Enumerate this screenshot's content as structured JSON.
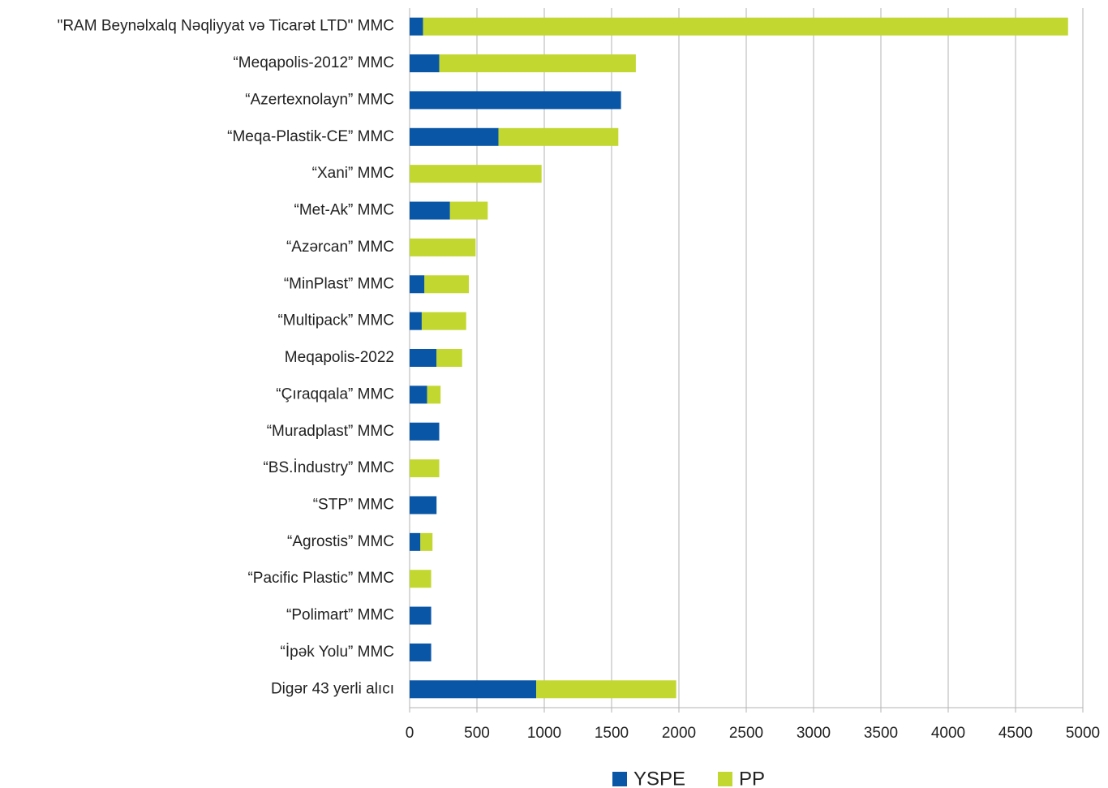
{
  "chart_data": {
    "type": "stacked_barh",
    "categories": [
      "\"RAM Beynəlxalq Nəqliyyat və Ticarət LTD\" MMC",
      "“Meqapolis-2012” MMC",
      "“Azertexnolayn” MMC",
      "“Meqa-Plastik-CE” MMC",
      "“Xani” MMC",
      "“Met-Ak” MMC",
      "“Azərcan” MMC",
      "“MinPlast” MMC",
      "“Multipack” MMC",
      "Meqapolis-2022",
      "“Çıraqqala” MMC",
      "“Muradplast” MMC",
      "“BS.İndustry” MMC",
      "“STP” MMC",
      "“Agrostis” MMC",
      "“Pacific Plastic” MMC",
      "“Polimart” MMC",
      "“İpək Yolu” MMC",
      "Digər 43 yerli alıcı"
    ],
    "series": [
      {
        "name": "YSPE",
        "color": "#0a56a6",
        "values": [
          100,
          220,
          1570,
          660,
          0,
          300,
          0,
          110,
          90,
          200,
          130,
          220,
          0,
          200,
          80,
          0,
          160,
          160,
          940
        ]
      },
      {
        "name": "PP",
        "color": "#c2d730",
        "values": [
          4790,
          1460,
          0,
          890,
          980,
          280,
          490,
          330,
          330,
          190,
          100,
          0,
          220,
          0,
          90,
          160,
          0,
          0,
          1040
        ]
      }
    ],
    "xlim": [
      0,
      5000
    ],
    "xticks": [
      0,
      500,
      1000,
      1500,
      2000,
      2500,
      3000,
      3500,
      4000,
      4500,
      5000
    ],
    "grid": true,
    "legend": "bottom"
  }
}
